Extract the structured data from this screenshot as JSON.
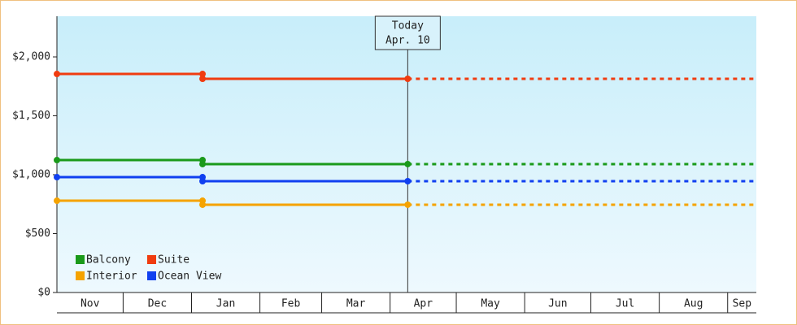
{
  "chart_data": {
    "type": "line",
    "series": [
      {
        "name": "Balcony",
        "color": "#1a9a1a",
        "x": [
          0,
          66,
          66,
          159
        ],
        "values": [
          1124,
          1124,
          1090,
          1090
        ]
      },
      {
        "name": "Suite",
        "color": "#f03c10",
        "x": [
          0,
          66,
          66,
          159
        ],
        "values": [
          1855,
          1855,
          1814,
          1814
        ]
      },
      {
        "name": "Interior",
        "color": "#f5a300",
        "x": [
          0,
          66,
          66,
          159
        ],
        "values": [
          779,
          779,
          745,
          745
        ]
      },
      {
        "name": "Ocean View",
        "color": "#1040f0",
        "x": [
          0,
          66,
          66,
          159
        ],
        "values": [
          979,
          979,
          945,
          945
        ]
      }
    ],
    "xlim": [
      0,
      317
    ],
    "xticks": [
      {
        "value": 0,
        "label": "Nov"
      },
      {
        "value": 30,
        "label": "Dec"
      },
      {
        "value": 61,
        "label": "Jan"
      },
      {
        "value": 92,
        "label": "Feb"
      },
      {
        "value": 120,
        "label": "Mar"
      },
      {
        "value": 151,
        "label": "Apr"
      },
      {
        "value": 181,
        "label": "May"
      },
      {
        "value": 212,
        "label": "Jun"
      },
      {
        "value": 242,
        "label": "Jul"
      },
      {
        "value": 273,
        "label": "Aug"
      },
      {
        "value": 304,
        "label": "Sep"
      }
    ],
    "ylim": [
      0,
      2345
    ],
    "yticks": [
      {
        "value": 0,
        "label": "$0"
      },
      {
        "value": 500,
        "label": "$500"
      },
      {
        "value": 1000,
        "label": "$1,000"
      },
      {
        "value": 1500,
        "label": "$1,500"
      },
      {
        "value": 2000,
        "label": "$2,000"
      }
    ],
    "annotation": {
      "x": 159,
      "lines": [
        "Today",
        "Apr. 10"
      ]
    },
    "legend": "bottom-left"
  }
}
